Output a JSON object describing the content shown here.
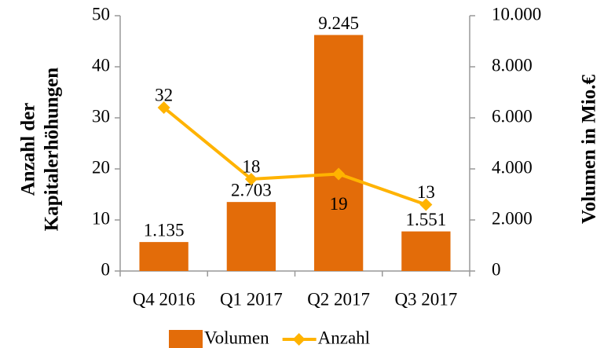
{
  "chart_data": {
    "type": "combo",
    "categories": [
      "Q4 2016",
      "Q1 2017",
      "Q2 2017",
      "Q3 2017"
    ],
    "series": [
      {
        "name": "Volumen",
        "type": "bar",
        "axis": "y2",
        "color": "#E36C09",
        "values": [
          1135,
          2703,
          9245,
          1551
        ],
        "value_labels": [
          "1.135",
          "2.703",
          "9.245",
          "1.551"
        ]
      },
      {
        "name": "Anzahl",
        "type": "line",
        "axis": "y",
        "color": "#FFB300",
        "values": [
          32,
          18,
          19,
          13
        ]
      }
    ],
    "ylabel": [
      "Anzahl der",
      "Kapitalerhöhungen"
    ],
    "y2label": "Volumen in Mio.€",
    "ylim": [
      0,
      50
    ],
    "yticks": [
      0,
      10,
      20,
      30,
      40,
      50
    ],
    "y2lim": [
      0,
      10000
    ],
    "y2ticks": [
      0,
      {
        "value": 2000,
        "label": "2.000"
      },
      {
        "value": 4000,
        "label": "4.000"
      },
      {
        "value": 6000,
        "label": "6.000"
      },
      {
        "value": 8000,
        "label": "8.000"
      },
      {
        "value": 10000,
        "label": "10.000"
      }
    ],
    "grid": false,
    "legend": "bottom"
  }
}
